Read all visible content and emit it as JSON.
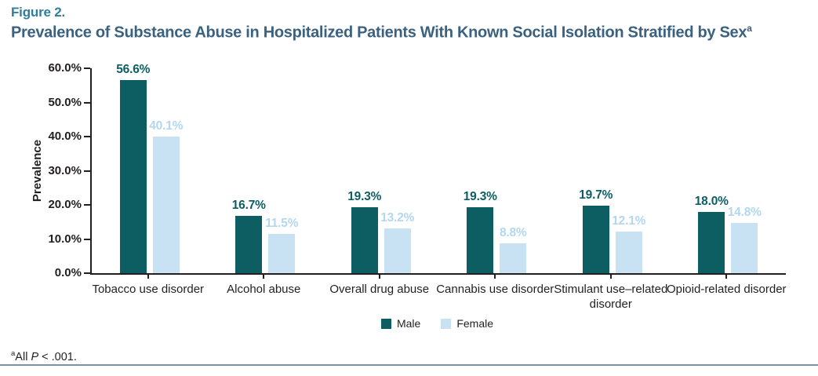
{
  "figure_label": "Figure 2.",
  "title": "Prevalence of Substance Abuse in Hospitalized Patients With Known Social Isolation Stratified by Sex",
  "title_superscript": "a",
  "footnote": {
    "superscript": "a",
    "prefix": "All ",
    "p": "P",
    "suffix": " < .001."
  },
  "colors": {
    "figure_label": "#2e7e9e",
    "title": "#3a617f",
    "axis_text": "#231f20",
    "bottom_rule": "#7e94a4",
    "male_bar": "#0d5e62",
    "male_label": "#0d5e62",
    "female_bar": "#c8e2f4",
    "female_label": "#b2d7ef"
  },
  "chart_data": {
    "type": "bar",
    "categories": [
      "Tobacco use disorder",
      "Alcohol abuse",
      "Overall drug abuse",
      "Cannabis use disorder",
      "Stimulant use–related\ndisorder",
      "Opioid-related disorder"
    ],
    "series": [
      {
        "name": "Male",
        "color": "#0d5e62",
        "label_color": "#0d5e62",
        "values": [
          56.6,
          16.7,
          19.3,
          19.3,
          19.7,
          18.0
        ]
      },
      {
        "name": "Female",
        "color": "#c8e2f4",
        "label_color": "#b2d7ef",
        "values": [
          40.1,
          11.5,
          13.2,
          8.8,
          12.1,
          14.8
        ]
      }
    ],
    "data_label_format": "percent1",
    "title": "",
    "xlabel": "",
    "ylabel": "Prevalence",
    "ylim": [
      0,
      60
    ],
    "ytick_step": 10,
    "ytick_format": "percent1",
    "grid": false,
    "legend_position": "bottom"
  }
}
